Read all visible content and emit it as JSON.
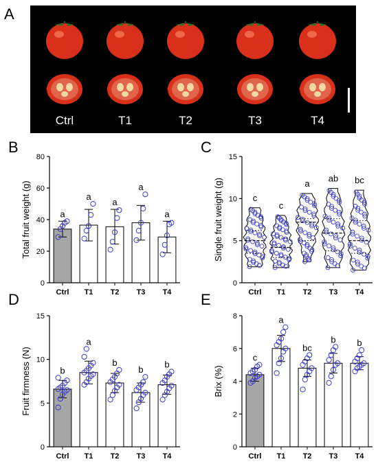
{
  "panels": {
    "A": {
      "letter": "A",
      "treatments": [
        "Ctrl",
        "T1",
        "T2",
        "T3",
        "T4"
      ],
      "background": "#000000",
      "fruit_color": "#d8301a",
      "flesh_color": "#e0654a"
    },
    "B": {
      "letter": "B"
    },
    "C": {
      "letter": "C"
    },
    "D": {
      "letter": "D"
    },
    "E": {
      "letter": "E"
    }
  },
  "colors": {
    "ctrl_bar": "#a6a6a6",
    "bar": "#ffffff",
    "points": "#3b3bd1",
    "axis": "#000000"
  },
  "chart_data": [
    {
      "panel": "B",
      "type": "bar",
      "categories": [
        "Ctrl",
        "T1",
        "T2",
        "T3",
        "T4"
      ],
      "values": [
        34,
        36.5,
        35.5,
        38,
        29
      ],
      "error": [
        5,
        10,
        11,
        11,
        10
      ],
      "letters": [
        "a",
        "a",
        "a",
        "a",
        "a"
      ],
      "points": [
        [
          29,
          34,
          36,
          38,
          39
        ],
        [
          28,
          33,
          36,
          43,
          50
        ],
        [
          21,
          26,
          32,
          41,
          46
        ],
        [
          27,
          33,
          38,
          47,
          56
        ],
        [
          18,
          24,
          30,
          37,
          38
        ]
      ],
      "ylabel": "Total fruit weight (g)",
      "ylim": [
        0,
        80
      ],
      "yticks": [
        0,
        20,
        40,
        60,
        80
      ]
    },
    {
      "panel": "C",
      "type": "violin",
      "categories": [
        "Ctrl",
        "T1",
        "T2",
        "T3",
        "T4"
      ],
      "medians": [
        5.0,
        4.2,
        7.2,
        5.9,
        5.0
      ],
      "quartiles": [
        [
          3.5,
          6.2
        ],
        [
          3.0,
          5.3
        ],
        [
          5.0,
          7.6
        ],
        [
          3.8,
          7.6
        ],
        [
          3.5,
          7.4
        ]
      ],
      "ranges": [
        [
          1.9,
          8.9
        ],
        [
          1.8,
          8.0
        ],
        [
          2.5,
          10.6
        ],
        [
          1.8,
          11.2
        ],
        [
          1.5,
          11.0
        ]
      ],
      "letters": [
        "c",
        "c",
        "a",
        "ab",
        "bc"
      ],
      "ylabel": "Single fruit weight (g)",
      "ylim": [
        0,
        15
      ],
      "yticks": [
        0,
        5,
        10,
        15
      ]
    },
    {
      "panel": "D",
      "type": "bar",
      "categories": [
        "Ctrl",
        "T1",
        "T2",
        "T3",
        "T4"
      ],
      "values": [
        6.6,
        8.5,
        7.3,
        6.2,
        7.1
      ],
      "error": [
        1.0,
        1.3,
        1.1,
        1.1,
        1.1
      ],
      "letters": [
        "b",
        "a",
        "b",
        "b",
        "b"
      ],
      "points": [
        [
          4.5,
          5.5,
          6.0,
          6.3,
          6.5,
          6.6,
          6.8,
          7.0,
          7.3,
          7.6,
          7.9
        ],
        [
          7.1,
          7.4,
          7.8,
          8.1,
          8.3,
          8.5,
          8.7,
          9.0,
          9.3,
          9.6,
          10.3,
          11.2
        ],
        [
          5.4,
          5.9,
          6.4,
          6.8,
          7.1,
          7.4,
          7.7,
          8.0,
          8.4,
          8.8
        ],
        [
          4.4,
          5.1,
          5.5,
          5.9,
          6.2,
          6.5,
          6.8,
          7.1,
          7.4,
          8.0
        ],
        [
          5.4,
          5.9,
          6.3,
          6.7,
          7.0,
          7.3,
          7.6,
          8.0,
          8.3,
          8.6
        ]
      ],
      "ylabel": "Fruit firmness (N)",
      "ylim": [
        0,
        15
      ],
      "yticks": [
        0,
        5,
        10,
        15
      ]
    },
    {
      "panel": "E",
      "type": "bar",
      "categories": [
        "Ctrl",
        "T1",
        "T2",
        "T3",
        "T4"
      ],
      "values": [
        4.4,
        6.0,
        4.8,
        5.1,
        5.1
      ],
      "error": [
        0.4,
        0.8,
        0.5,
        0.6,
        0.4
      ],
      "letters": [
        "c",
        "a",
        "bc",
        "b",
        "b"
      ],
      "points": [
        [
          3.9,
          4.0,
          4.2,
          4.3,
          4.4,
          4.5,
          4.6,
          4.7,
          4.9,
          5.0
        ],
        [
          4.5,
          5.1,
          5.4,
          5.8,
          6.0,
          6.2,
          6.4,
          6.6,
          7.0,
          7.3
        ],
        [
          3.5,
          4.1,
          4.4,
          4.6,
          4.8,
          5.0,
          5.2,
          5.4,
          5.6
        ],
        [
          3.9,
          4.3,
          4.7,
          5.0,
          5.1,
          5.3,
          5.6,
          5.9,
          6.1
        ],
        [
          4.6,
          4.8,
          4.9,
          5.0,
          5.1,
          5.2,
          5.4,
          5.6,
          5.9
        ]
      ],
      "ylabel": "Brix (%)",
      "ylim": [
        0,
        8
      ],
      "yticks": [
        0,
        2,
        4,
        6,
        8
      ]
    }
  ]
}
